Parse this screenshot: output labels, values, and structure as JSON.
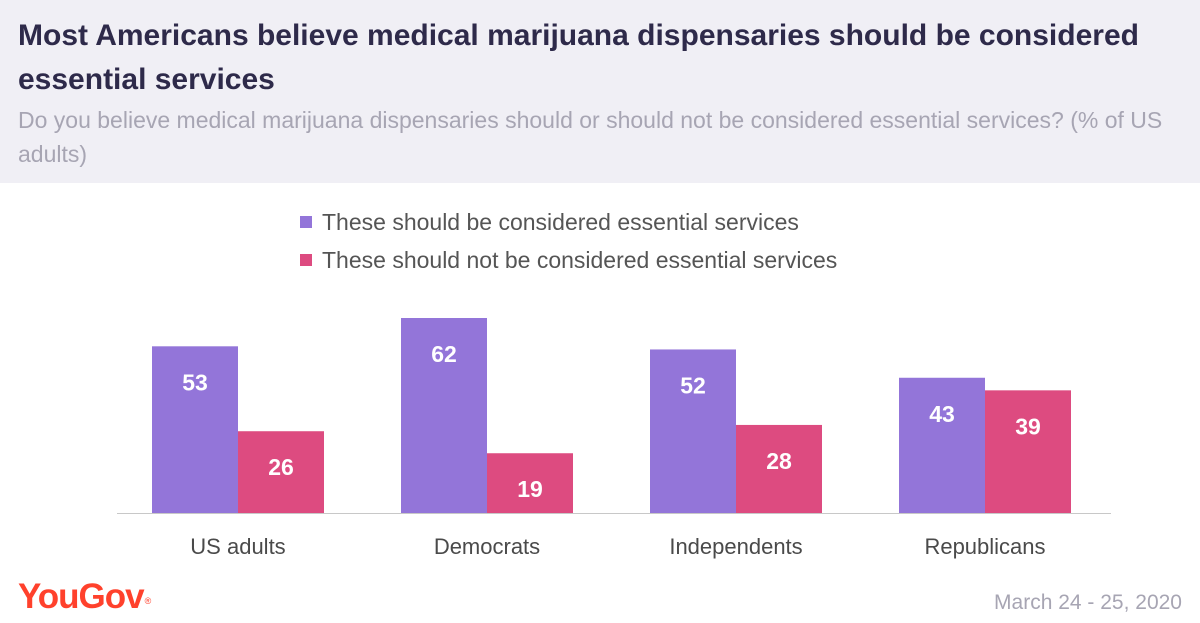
{
  "header": {
    "title": "Most Americans believe medical marijuana dispensaries should be considered essential services",
    "subtitle": "Do you believe medical marijuana dispensaries should or should not be considered essential services? (% of US adults)"
  },
  "chart_data": {
    "type": "bar",
    "categories": [
      "US adults",
      "Democrats",
      "Independents",
      "Republicans"
    ],
    "series": [
      {
        "name": "These should be considered essential services",
        "values": [
          53,
          62,
          52,
          43
        ],
        "color": "#9375d9"
      },
      {
        "name": "These should not be considered essential services",
        "values": [
          26,
          19,
          28,
          39
        ],
        "color": "#dd4b80"
      }
    ],
    "ylim": [
      0,
      62
    ],
    "grid": false,
    "legend": "top-center",
    "xlabel": "",
    "ylabel": ""
  },
  "footer": {
    "brand": "YouGov",
    "trademark": "®",
    "date": "March 24 - 25, 2020"
  },
  "colors": {
    "header_bg": "#f0eff5",
    "title": "#2e2a4a",
    "subtitle": "#a7a5b3",
    "brand": "#ff412c",
    "axis_text": "#4a4a4a"
  }
}
